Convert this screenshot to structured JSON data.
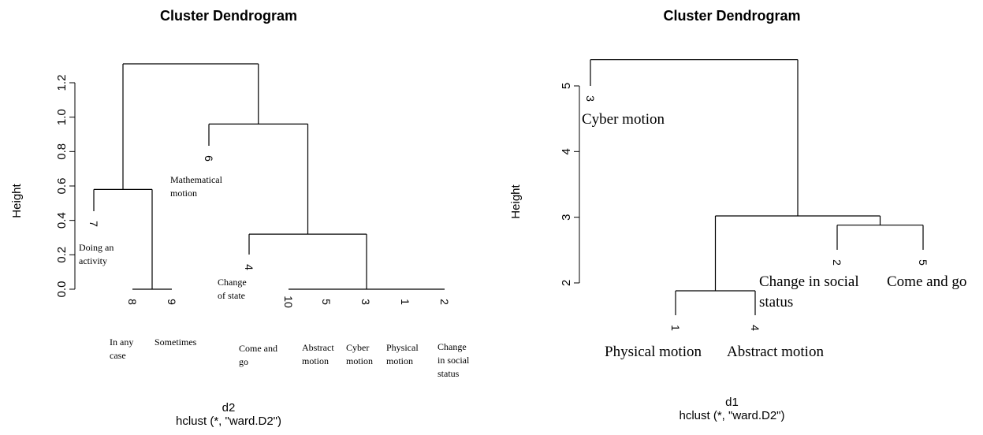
{
  "chart_data": [
    {
      "type": "dendrogram",
      "title": "Cluster Dendrogram",
      "ylabel": "Height",
      "xlabel": "d2",
      "sublabel": "hclust (*, \"ward.D2\")",
      "yticks": [
        0.0,
        0.2,
        0.4,
        0.6,
        0.8,
        1.0,
        1.2
      ],
      "ytick_labels": [
        "0.0",
        "0.2",
        "0.4",
        "0.6",
        "0.8",
        "1.0",
        "1.2"
      ],
      "leaves": [
        {
          "id": "7",
          "label": [
            "Doing an",
            "activity"
          ]
        },
        {
          "id": "8",
          "label": [
            "In any",
            "case"
          ]
        },
        {
          "id": "9",
          "label": [
            "Sometimes"
          ]
        },
        {
          "id": "6",
          "label": [
            "Mathematical",
            "motion"
          ]
        },
        {
          "id": "4",
          "label": [
            "Change",
            "of state"
          ]
        },
        {
          "id": "10",
          "label": [
            "Come and",
            "go"
          ]
        },
        {
          "id": "5",
          "label": [
            "Abstract",
            "motion"
          ]
        },
        {
          "id": "3",
          "label": [
            "Cyber",
            "motion"
          ]
        },
        {
          "id": "1",
          "label": [
            "Physical",
            "motion"
          ]
        },
        {
          "id": "2",
          "label": [
            "Change",
            "in social",
            "status"
          ]
        }
      ],
      "merges": [
        {
          "children": [
            "8",
            "9"
          ],
          "height": 0.0
        },
        {
          "children": [
            "10",
            "5",
            "3",
            "1",
            "2"
          ],
          "height": 0.0
        },
        {
          "children": [
            "4",
            "[10,5,3,1,2]"
          ],
          "height": 0.32
        },
        {
          "children": [
            "7",
            "[8,9]"
          ],
          "height": 0.58
        },
        {
          "children": [
            "6",
            "[4,10,5,3,1,2]"
          ],
          "height": 0.96
        },
        {
          "children": [
            "[7,8,9]",
            "[6,4,10,5,3,1,2]"
          ],
          "height": 1.31
        }
      ]
    },
    {
      "type": "dendrogram",
      "title": "Cluster Dendrogram",
      "ylabel": "Height",
      "xlabel": "d1",
      "sublabel": "hclust (*, \"ward.D2\")",
      "yticks": [
        2,
        3,
        4,
        5
      ],
      "ytick_labels": [
        "2",
        "3",
        "4",
        "5"
      ],
      "leaves": [
        {
          "id": "3",
          "label": [
            "Cyber motion"
          ]
        },
        {
          "id": "1",
          "label": [
            "Physical motion"
          ]
        },
        {
          "id": "4",
          "label": [
            "Abstract motion"
          ]
        },
        {
          "id": "2",
          "label": [
            "Change in social",
            "status"
          ]
        },
        {
          "id": "5",
          "label": [
            "Come and go"
          ]
        }
      ],
      "merges": [
        {
          "children": [
            "1",
            "4"
          ],
          "height": 1.88
        },
        {
          "children": [
            "2",
            "5"
          ],
          "height": 2.88
        },
        {
          "children": [
            "[1,4]",
            "[2,5]"
          ],
          "height": 3.02
        },
        {
          "children": [
            "3",
            "[1,4,2,5]"
          ],
          "height": 5.4
        }
      ]
    }
  ]
}
